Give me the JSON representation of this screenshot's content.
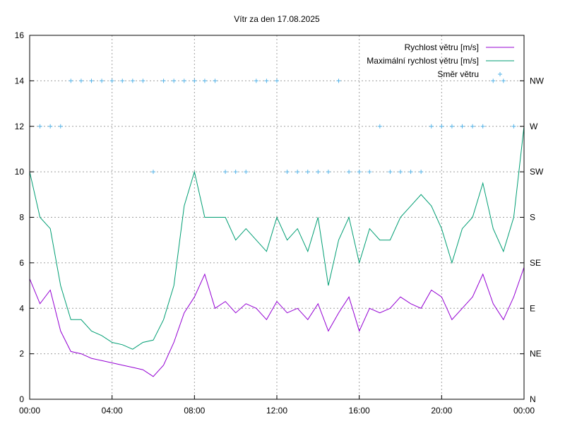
{
  "chart_data": {
    "type": "line",
    "title": "Vítr za den 17.08.2025",
    "xlabel": "",
    "ylabel": "",
    "xlim": [
      0,
      24
    ],
    "ylim": [
      0,
      16
    ],
    "x_ticks": [
      {
        "value": 0,
        "label": "00:00"
      },
      {
        "value": 4,
        "label": "04:00"
      },
      {
        "value": 8,
        "label": "08:00"
      },
      {
        "value": 12,
        "label": "12:00"
      },
      {
        "value": 16,
        "label": "16:00"
      },
      {
        "value": 20,
        "label": "20:00"
      },
      {
        "value": 24,
        "label": "00:00"
      }
    ],
    "y_ticks": [
      {
        "value": 0,
        "label": "0"
      },
      {
        "value": 2,
        "label": "2"
      },
      {
        "value": 4,
        "label": "4"
      },
      {
        "value": 6,
        "label": "6"
      },
      {
        "value": 8,
        "label": "8"
      },
      {
        "value": 10,
        "label": "10"
      },
      {
        "value": 12,
        "label": "12"
      },
      {
        "value": 14,
        "label": "14"
      },
      {
        "value": 16,
        "label": "16"
      }
    ],
    "y2_ticks": [
      {
        "value": 0,
        "label": "N"
      },
      {
        "value": 2,
        "label": "NE"
      },
      {
        "value": 4,
        "label": "E"
      },
      {
        "value": 6,
        "label": "SE"
      },
      {
        "value": 8,
        "label": "S"
      },
      {
        "value": 10,
        "label": "SW"
      },
      {
        "value": 12,
        "label": "W"
      },
      {
        "value": 14,
        "label": "NW"
      }
    ],
    "legend_position": "top-right",
    "series": [
      {
        "name": "Rychlost větru [m/s]",
        "style": "line",
        "color": "#9400d3",
        "x": [
          0,
          0.5,
          1,
          1.5,
          2,
          2.5,
          3,
          3.5,
          4,
          4.5,
          5,
          5.5,
          6,
          6.5,
          7,
          7.5,
          8,
          8.5,
          9,
          9.5,
          10,
          10.5,
          11,
          11.5,
          12,
          12.5,
          13,
          13.5,
          14,
          14.5,
          15,
          15.5,
          16,
          16.5,
          17,
          17.5,
          18,
          18.5,
          19,
          19.5,
          20,
          20.5,
          21,
          21.5,
          22,
          22.5,
          23,
          23.5,
          24
        ],
        "y": [
          5.3,
          4.2,
          4.8,
          3.0,
          2.1,
          2.0,
          1.8,
          1.7,
          1.6,
          1.5,
          1.4,
          1.3,
          1.0,
          1.5,
          2.5,
          3.8,
          4.5,
          5.5,
          4.0,
          4.3,
          3.8,
          4.2,
          4.0,
          3.5,
          4.3,
          3.8,
          4.0,
          3.5,
          4.2,
          3.0,
          3.8,
          4.5,
          3.0,
          4.0,
          3.8,
          4.0,
          4.5,
          4.2,
          4.0,
          4.8,
          4.5,
          3.5,
          4.0,
          4.5,
          5.5,
          4.2,
          3.5,
          4.5,
          5.8
        ]
      },
      {
        "name": "Maximální rychlost větru [m/s]",
        "style": "line",
        "color": "#009e73",
        "x": [
          0,
          0.5,
          1,
          1.5,
          2,
          2.5,
          3,
          3.5,
          4,
          4.5,
          5,
          5.5,
          6,
          6.5,
          7,
          7.5,
          8,
          8.5,
          9,
          9.5,
          10,
          10.5,
          11,
          11.5,
          12,
          12.5,
          13,
          13.5,
          14,
          14.5,
          15,
          15.5,
          16,
          16.5,
          17,
          17.5,
          18,
          18.5,
          19,
          19.5,
          20,
          20.5,
          21,
          21.5,
          22,
          22.5,
          23,
          23.5,
          24
        ],
        "y": [
          10.0,
          8.0,
          7.5,
          5.0,
          3.5,
          3.5,
          3.0,
          2.8,
          2.5,
          2.4,
          2.2,
          2.5,
          2.6,
          3.5,
          5.0,
          8.5,
          10.0,
          8.0,
          8.0,
          8.0,
          7.0,
          7.5,
          7.0,
          6.5,
          8.0,
          7.0,
          7.5,
          6.5,
          8.0,
          5.0,
          7.0,
          8.0,
          6.0,
          7.5,
          7.0,
          7.0,
          8.0,
          8.5,
          9.0,
          8.5,
          7.5,
          6.0,
          7.5,
          8.0,
          9.5,
          7.5,
          6.5,
          8.0,
          12.0
        ]
      },
      {
        "name": "Směr větru",
        "style": "points",
        "color": "#56b4e9",
        "x": [
          0.5,
          1.0,
          1.5,
          2.0,
          2.5,
          3.0,
          3.5,
          4.0,
          4.5,
          5.0,
          5.5,
          6.0,
          6.5,
          7.0,
          7.5,
          8.0,
          8.5,
          9.0,
          9.5,
          10.0,
          10.5,
          11.0,
          11.5,
          12.0,
          12.5,
          13.0,
          13.5,
          14.0,
          14.5,
          15.0,
          15.5,
          16.0,
          16.5,
          17.0,
          17.5,
          18.0,
          18.5,
          19.0,
          19.5,
          20.0,
          20.5,
          21.0,
          21.5,
          22.0,
          22.5,
          23.0,
          23.5
        ],
        "y": [
          12,
          12,
          12,
          14,
          14,
          14,
          14,
          14,
          14,
          14,
          14,
          10,
          14,
          14,
          14,
          14,
          14,
          14,
          10,
          10,
          10,
          14,
          14,
          14,
          10,
          10,
          10,
          10,
          10,
          14,
          10,
          10,
          10,
          12,
          10,
          10,
          10,
          10,
          12,
          12,
          12,
          12,
          12,
          12,
          14,
          14,
          12
        ]
      }
    ]
  }
}
